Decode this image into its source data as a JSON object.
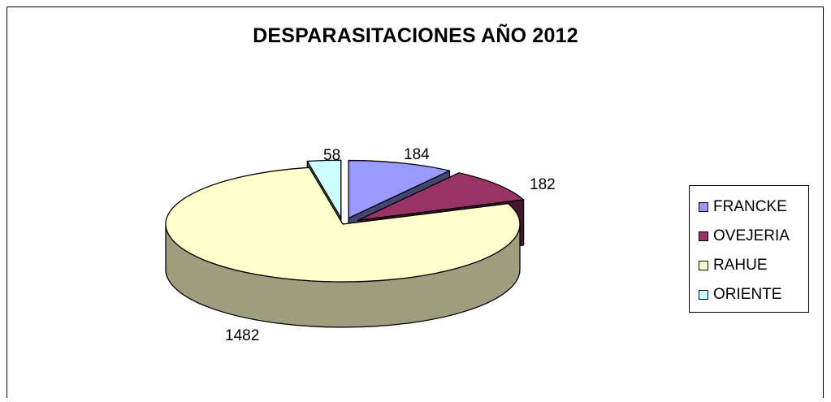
{
  "chart_data": {
    "type": "pie",
    "title": "DESPARASITACIONES AÑO 2012",
    "categories": [
      "FRANCKE",
      "OVEJERIA",
      "RAHUE",
      "ORIENTE"
    ],
    "values": [
      184,
      182,
      1482,
      58
    ],
    "data_labels": [
      "184",
      "182",
      "1482",
      "58"
    ],
    "colors": [
      "#9999ff",
      "#993366",
      "#ffffcc",
      "#ccffff"
    ],
    "style": "3d-exploded",
    "legend_position": "right"
  }
}
